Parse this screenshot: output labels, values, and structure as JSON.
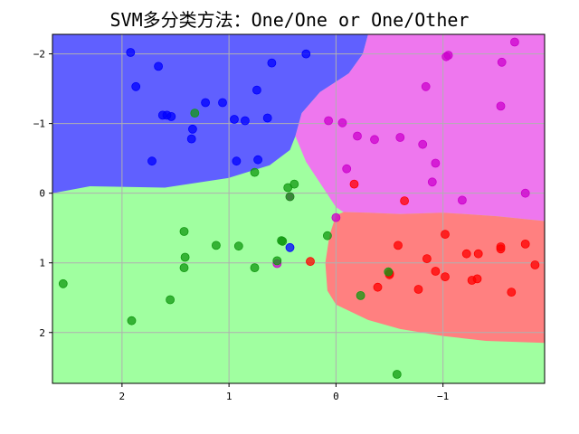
{
  "chart_data": {
    "type": "scatter",
    "title": "SVM多分类方法：One/One or One/Other",
    "xlabel": "",
    "ylabel": "",
    "xlim": [
      2.65,
      -1.95
    ],
    "ylim": [
      -2.28,
      2.73
    ],
    "x_ticks": [
      {
        "value": 2,
        "label": "2"
      },
      {
        "value": 1,
        "label": "1"
      },
      {
        "value": 0,
        "label": "0"
      },
      {
        "value": -1,
        "label": "−1"
      }
    ],
    "y_ticks": [
      {
        "value": -2,
        "label": "−2"
      },
      {
        "value": -1,
        "label": "−1"
      },
      {
        "value": 0,
        "label": "0"
      },
      {
        "value": 1,
        "label": "1"
      },
      {
        "value": 2,
        "label": "2"
      }
    ],
    "grid": true,
    "legend": "none",
    "regions": [
      {
        "name": "blue-region",
        "color": "#6060ff",
        "boundary": [
          [
            2.65,
            -2.28
          ],
          [
            -0.3,
            -2.28
          ],
          [
            -0.25,
            -2.0
          ],
          [
            -0.12,
            -1.72
          ],
          [
            0.15,
            -1.45
          ],
          [
            0.32,
            -1.15
          ],
          [
            0.38,
            -0.82
          ],
          [
            0.43,
            -0.62
          ],
          [
            0.62,
            -0.4
          ],
          [
            1.0,
            -0.22
          ],
          [
            1.6,
            -0.08
          ],
          [
            2.3,
            -0.1
          ],
          [
            2.65,
            0.0
          ]
        ]
      },
      {
        "name": "magenta-region",
        "color": "#ee77ee",
        "boundary": [
          [
            -0.3,
            -2.28
          ],
          [
            -1.95,
            -2.28
          ],
          [
            -1.95,
            0.4
          ],
          [
            -1.5,
            0.33
          ],
          [
            -1.0,
            0.28
          ],
          [
            -0.6,
            0.3
          ],
          [
            -0.3,
            0.28
          ],
          [
            -0.07,
            0.27
          ],
          [
            0.0,
            0.2
          ],
          [
            0.28,
            -0.45
          ],
          [
            0.38,
            -0.82
          ],
          [
            0.32,
            -1.15
          ],
          [
            0.15,
            -1.45
          ],
          [
            -0.12,
            -1.72
          ],
          [
            -0.25,
            -2.0
          ]
        ]
      },
      {
        "name": "red-region",
        "color": "#ff8080",
        "boundary": [
          [
            -0.07,
            0.27
          ],
          [
            -0.3,
            0.28
          ],
          [
            -0.6,
            0.3
          ],
          [
            -1.0,
            0.28
          ],
          [
            -1.5,
            0.33
          ],
          [
            -1.95,
            0.4
          ],
          [
            -1.95,
            2.15
          ],
          [
            -1.4,
            2.12
          ],
          [
            -1.0,
            2.05
          ],
          [
            -0.6,
            1.95
          ],
          [
            -0.3,
            1.82
          ],
          [
            0.0,
            1.6
          ],
          [
            0.08,
            1.4
          ],
          [
            0.1,
            1.0
          ],
          [
            0.06,
            0.6
          ],
          [
            0.0,
            0.32
          ]
        ]
      },
      {
        "name": "green-region",
        "color": "#a0ffa0",
        "boundary": []
      }
    ],
    "series": [
      {
        "class": "blue",
        "color": "#0000ff",
        "points": [
          [
            1.92,
            -2.02
          ],
          [
            1.66,
            -1.82
          ],
          [
            0.6,
            -1.87
          ],
          [
            0.28,
            -2.0
          ],
          [
            1.87,
            -1.53
          ],
          [
            0.74,
            -1.48
          ],
          [
            1.22,
            -1.3
          ],
          [
            1.06,
            -1.3
          ],
          [
            1.62,
            -1.12
          ],
          [
            1.58,
            -1.12
          ],
          [
            1.54,
            -1.1
          ],
          [
            0.95,
            -1.06
          ],
          [
            0.85,
            -1.04
          ],
          [
            0.64,
            -1.08
          ],
          [
            1.34,
            -0.92
          ],
          [
            1.35,
            -0.78
          ],
          [
            1.72,
            -0.46
          ],
          [
            0.93,
            -0.46
          ],
          [
            0.73,
            -0.48
          ],
          [
            0.43,
            0.78
          ]
        ]
      },
      {
        "class": "magenta",
        "color": "#cc00cc",
        "points": [
          [
            -1.67,
            -2.17
          ],
          [
            -1.05,
            -1.98
          ],
          [
            -1.03,
            -1.96
          ],
          [
            -1.55,
            -1.88
          ],
          [
            -0.84,
            -1.53
          ],
          [
            -1.54,
            -1.25
          ],
          [
            0.07,
            -1.04
          ],
          [
            -0.06,
            -1.01
          ],
          [
            -0.2,
            -0.82
          ],
          [
            -0.36,
            -0.77
          ],
          [
            -0.6,
            -0.8
          ],
          [
            -0.81,
            -0.7
          ],
          [
            -0.93,
            -0.43
          ],
          [
            -0.1,
            -0.35
          ],
          [
            -0.9,
            -0.16
          ],
          [
            -1.18,
            0.1
          ],
          [
            -1.77,
            0.0
          ],
          [
            0.43,
            0.05
          ],
          [
            0.0,
            0.35
          ],
          [
            0.55,
            1.01
          ]
        ]
      },
      {
        "class": "red",
        "color": "#ff0000",
        "points": [
          [
            -0.17,
            -0.13
          ],
          [
            -0.64,
            0.11
          ],
          [
            -1.02,
            0.59
          ],
          [
            -0.58,
            0.75
          ],
          [
            -1.54,
            0.77
          ],
          [
            -1.54,
            0.8
          ],
          [
            -1.77,
            0.73
          ],
          [
            -1.22,
            0.87
          ],
          [
            -1.33,
            0.87
          ],
          [
            -0.85,
            0.94
          ],
          [
            -1.86,
            1.03
          ],
          [
            -0.93,
            1.12
          ],
          [
            -1.02,
            1.2
          ],
          [
            -0.5,
            1.15
          ],
          [
            -0.5,
            1.17
          ],
          [
            -1.27,
            1.25
          ],
          [
            -1.32,
            1.23
          ],
          [
            -0.77,
            1.38
          ],
          [
            -0.39,
            1.35
          ],
          [
            -1.64,
            1.42
          ],
          [
            0.24,
            0.98
          ]
        ]
      },
      {
        "class": "green",
        "color": "#119911",
        "points": [
          [
            1.32,
            -1.15
          ],
          [
            0.76,
            -0.3
          ],
          [
            0.39,
            -0.13
          ],
          [
            0.45,
            -0.08
          ],
          [
            0.43,
            0.05
          ],
          [
            1.42,
            0.55
          ],
          [
            1.12,
            0.75
          ],
          [
            0.91,
            0.76
          ],
          [
            0.51,
            0.68
          ],
          [
            0.5,
            0.69
          ],
          [
            0.08,
            0.61
          ],
          [
            1.41,
            0.92
          ],
          [
            1.42,
            1.07
          ],
          [
            0.76,
            1.07
          ],
          [
            0.55,
            0.97
          ],
          [
            2.55,
            1.3
          ],
          [
            1.55,
            1.53
          ],
          [
            1.91,
            1.83
          ],
          [
            -0.23,
            1.47
          ],
          [
            -0.49,
            1.13
          ],
          [
            -0.57,
            2.6
          ]
        ]
      }
    ]
  }
}
